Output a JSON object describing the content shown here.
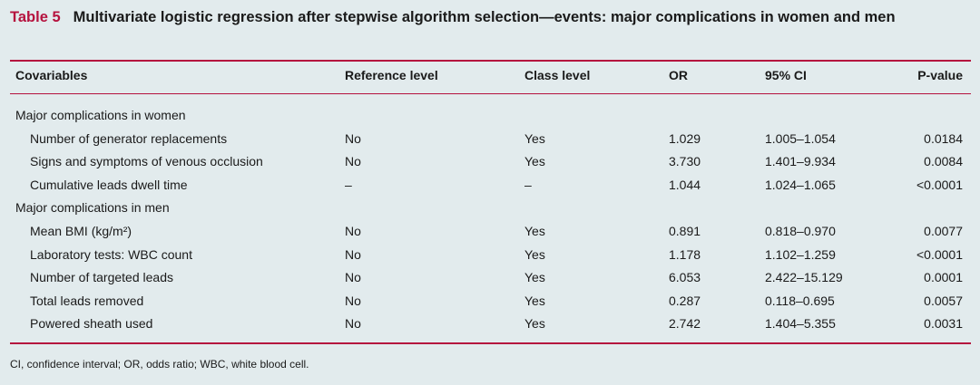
{
  "title": {
    "label": "Table 5",
    "text": "Multivariate logistic regression after stepwise algorithm selection—events: major complications in women and men"
  },
  "table": {
    "columns": [
      "Covariables",
      "Reference level",
      "Class level",
      "OR",
      "95% CI",
      "P-value"
    ],
    "groups": [
      {
        "label": "Major complications in women",
        "rows": [
          [
            "Number of generator replacements",
            "No",
            "Yes",
            "1.029",
            "1.005–1.054",
            "0.0184"
          ],
          [
            "Signs and symptoms of venous occlusion",
            "No",
            "Yes",
            "3.730",
            "1.401–9.934",
            "0.0084"
          ],
          [
            "Cumulative leads dwell time",
            "–",
            "–",
            "1.044",
            "1.024–1.065",
            "<0.0001"
          ]
        ]
      },
      {
        "label": "Major complications in men",
        "rows": [
          [
            "Mean BMI (kg/m²)",
            "No",
            "Yes",
            "0.891",
            "0.818–0.970",
            "0.0077"
          ],
          [
            "Laboratory tests: WBC count",
            "No",
            "Yes",
            "1.178",
            "1.102–1.259",
            "<0.0001"
          ],
          [
            "Number of targeted leads",
            "No",
            "Yes",
            "6.053",
            "2.422–15.129",
            "0.0001"
          ],
          [
            "Total leads removed",
            "No",
            "Yes",
            "0.287",
            "0.118–0.695",
            "0.0057"
          ],
          [
            "Powered sheath used",
            "No",
            "Yes",
            "2.742",
            "1.404–5.355",
            "0.0031"
          ]
        ]
      }
    ]
  },
  "footnote": "CI, confidence interval; OR, odds ratio; WBC, white blood cell."
}
